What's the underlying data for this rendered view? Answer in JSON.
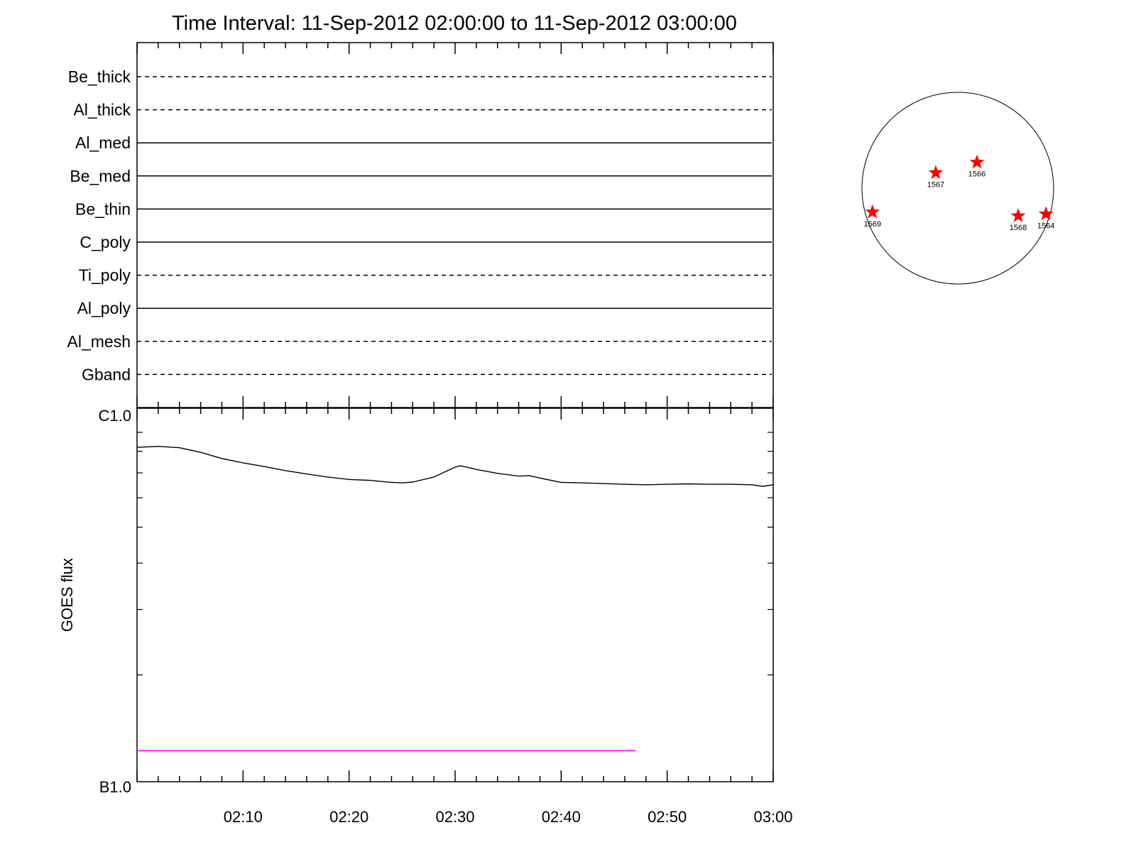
{
  "title": "Time Interval: 11-Sep-2012 02:00:00 to 11-Sep-2012 03:00:00",
  "colors": {
    "axis": "#000000",
    "flux_line": "#000000",
    "class_line": "#ff00ff",
    "star": "#ff0000"
  },
  "chart_data": [
    {
      "type": "table",
      "name": "filter-channel-timeline",
      "x_range": [
        "02:00",
        "03:00"
      ],
      "channels": [
        {
          "label": "Be_thick",
          "style": "dashed"
        },
        {
          "label": "Al_thick",
          "style": "dashed"
        },
        {
          "label": "Al_med",
          "style": "solid"
        },
        {
          "label": "Be_med",
          "style": "solid"
        },
        {
          "label": "Be_thin",
          "style": "solid"
        },
        {
          "label": "C_poly",
          "style": "solid"
        },
        {
          "label": "Ti_poly",
          "style": "dashed"
        },
        {
          "label": "Al_poly",
          "style": "solid"
        },
        {
          "label": "Al_mesh",
          "style": "dashed"
        },
        {
          "label": "Gband",
          "style": "dashed"
        }
      ]
    },
    {
      "type": "line",
      "name": "goes-flux",
      "ylabel": "GOES flux",
      "ylog": true,
      "ylim": [
        1e-07,
        1e-06
      ],
      "y_tick_labels": [
        {
          "value": 1e-06,
          "label": "C1.0"
        },
        {
          "value": 1e-07,
          "label": "B1.0"
        }
      ],
      "xlim": [
        "02:00",
        "03:00"
      ],
      "x_tick_labels": [
        "02:10",
        "02:20",
        "02:30",
        "02:40",
        "02:50",
        "03:00"
      ],
      "series": [
        {
          "x": [
            "02:00",
            "02:02",
            "02:04",
            "02:06",
            "02:08",
            "02:10",
            "02:12",
            "02:14",
            "02:16",
            "02:18",
            "02:20",
            "02:22",
            "02:24",
            "02:25",
            "02:26",
            "02:28",
            "02:30",
            "02:30.5",
            "02:32",
            "02:34",
            "02:36",
            "02:37",
            "02:38",
            "02:40",
            "02:42",
            "02:44",
            "02:46",
            "02:48",
            "02:50",
            "02:52",
            "02:54",
            "02:56",
            "02:58",
            "02:59",
            "03:00"
          ],
          "values": [
            8.2e-07,
            8.25e-07,
            8.18e-07,
            7.95e-07,
            7.65e-07,
            7.45e-07,
            7.28e-07,
            7.1e-07,
            6.95e-07,
            6.82e-07,
            6.72e-07,
            6.68e-07,
            6.6e-07,
            6.58e-07,
            6.61e-07,
            6.82e-07,
            7.25e-07,
            7.32e-07,
            7.15e-07,
            6.98e-07,
            6.86e-07,
            6.88e-07,
            6.78e-07,
            6.6e-07,
            6.58e-07,
            6.55e-07,
            6.52e-07,
            6.5e-07,
            6.52e-07,
            6.54e-07,
            6.52e-07,
            6.52e-07,
            6.5e-07,
            6.44e-07,
            6.5e-07
          ]
        },
        {
          "x": [
            "02:00",
            "02:47"
          ],
          "values": [
            1.25e-07,
            1.25e-07
          ]
        }
      ]
    },
    {
      "type": "scatter",
      "name": "solar-disk-active-regions",
      "xlim": [
        -1,
        1
      ],
      "ylim": [
        -1,
        1
      ],
      "points": [
        {
          "label": "1566",
          "x": 0.2,
          "y": 0.27
        },
        {
          "label": "1567",
          "x": -0.23,
          "y": 0.16
        },
        {
          "label": "1568",
          "x": 0.63,
          "y": -0.29
        },
        {
          "label": "1564",
          "x": 0.92,
          "y": -0.27
        },
        {
          "label": "1569",
          "x": -0.89,
          "y": -0.25
        }
      ]
    }
  ]
}
